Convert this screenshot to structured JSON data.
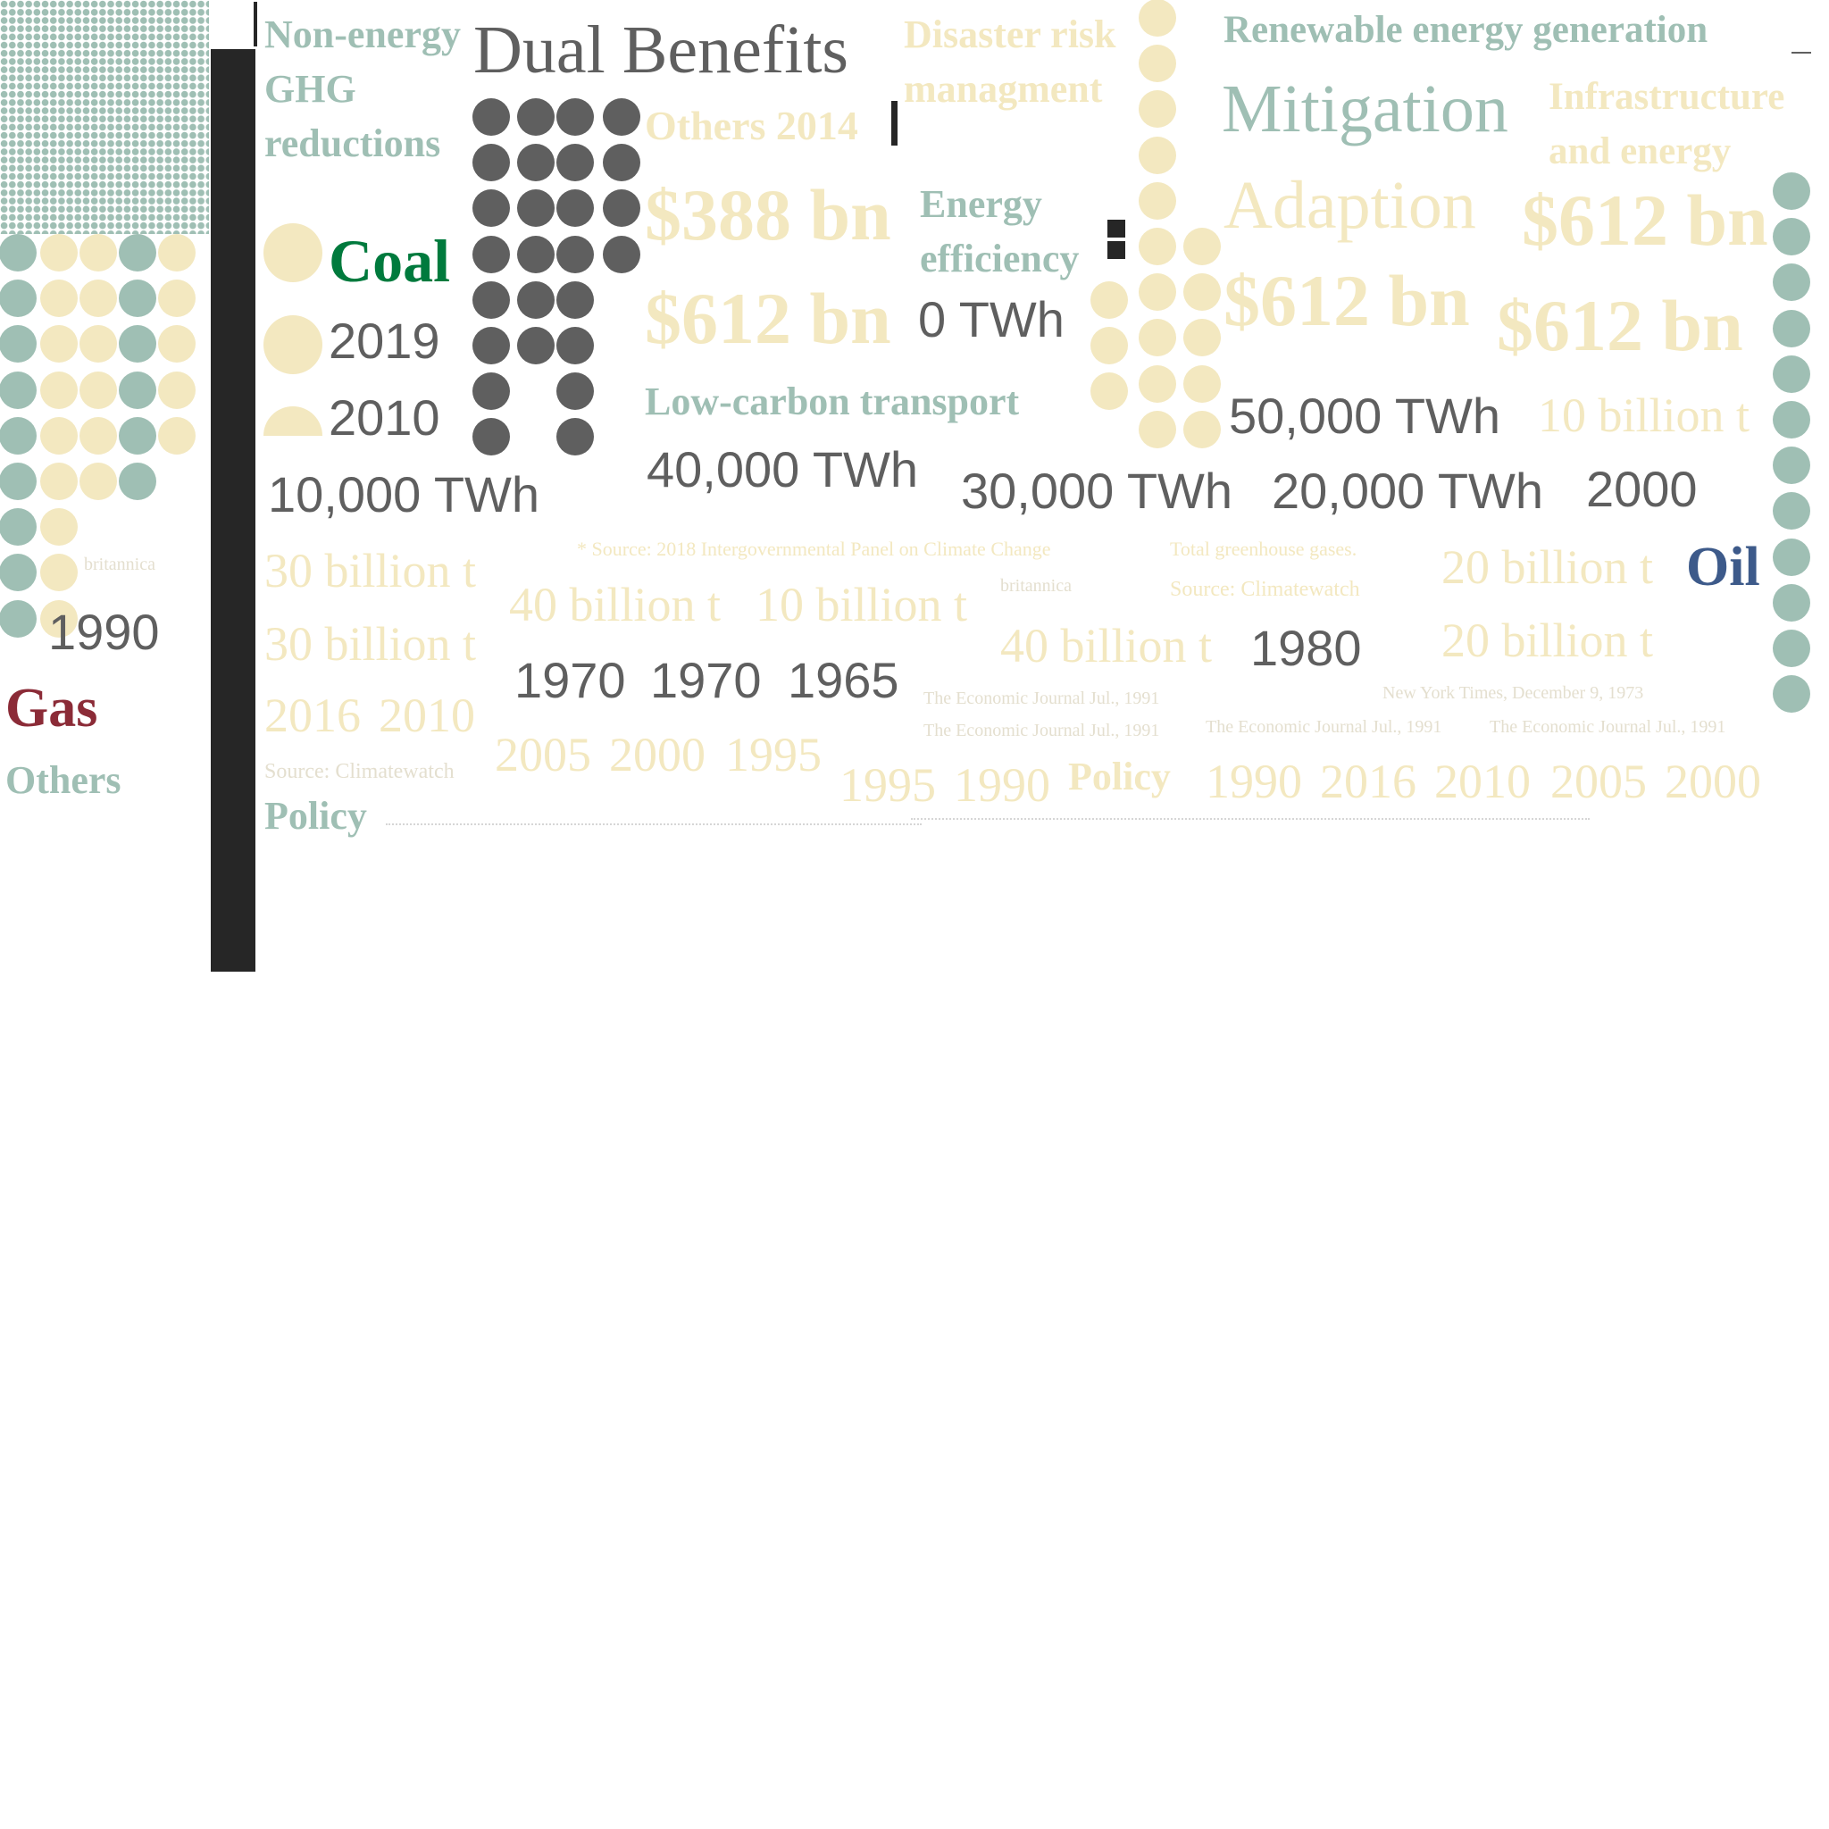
{
  "colors": {
    "sage": "#9fbfb4",
    "sand": "#f3e8c0",
    "grey": "#5f5f5f",
    "dark": "#262626",
    "coal_green": "#007a3d",
    "gas_red": "#8b2b37",
    "oil_blue": "#3d5a8a",
    "faint": "#e4dfcf"
  },
  "title": "Dual Benefits",
  "categories": {
    "non_energy": "Non-energy GHG reductions",
    "others_2014": "Others 2014",
    "disaster": "Disaster risk managment",
    "renewable": "Renewable energy generation",
    "mitigation": "Mitigation",
    "infrastructure": "Infrastructure and energy",
    "energy_efficiency": "Energy efficiency",
    "adaption": "Adaption",
    "low_carbon": "Low-carbon transport",
    "policy_1": "Policy",
    "policy_2": "Policy",
    "others": "Others"
  },
  "fuels": {
    "coal": "Coal",
    "gas": "Gas",
    "oil": "Oil"
  },
  "money": {
    "m1": "$388 bn",
    "m2": "$612 bn",
    "m3": "$612 bn",
    "m4": "$612 bn",
    "m5": "$612 bn"
  },
  "energy": {
    "e0": "0 TWh",
    "e10k": "10,000 TWh",
    "e20k": "20,000 TWh",
    "e30k": "30,000 TWh",
    "e40k": "40,000 TWh",
    "e50k": "50,000 TWh"
  },
  "years_dark": {
    "y2019": "2019",
    "y2010": "2010",
    "y1990": "1990",
    "y1970a": "1970",
    "y1970b": "1970",
    "y1965": "1965",
    "y1980": "1980",
    "y2000": "2000"
  },
  "emissions": {
    "b30a": "30 billion t",
    "b30b": "30 billion t",
    "b40a": "40 billion t",
    "b10a": "10 billion t",
    "b40b": "40 billion t",
    "b20a": "20 billion t",
    "b20b": "20 billion t",
    "b10b": "10 billion t"
  },
  "years_faint": {
    "row1": [
      "2016",
      "2010"
    ],
    "row2": [
      "2005",
      "2000",
      "1995"
    ],
    "row3": [
      "1995",
      "1990"
    ],
    "row4": [
      "1990",
      "2016",
      "2010",
      "2005",
      "2000"
    ]
  },
  "sources": {
    "ipcc": "* Source: 2018 Intergovernmental Panel on Climate Change",
    "total_ghg": "Total greenhouse gases.",
    "britannica1": "britannica",
    "britannica2": "britannica",
    "climatewatch1": "Source: Climatewatch",
    "climatewatch2": "Source: Climatewatch",
    "nyt": "New York Times, December 9, 1973",
    "econ1": "The Economic Journal Jul., 1991",
    "econ2": "The Economic Journal Jul., 1991",
    "econ3": "The Economic Journal Jul., 1991",
    "econ4": "The Economic Journal Jul., 1991"
  }
}
